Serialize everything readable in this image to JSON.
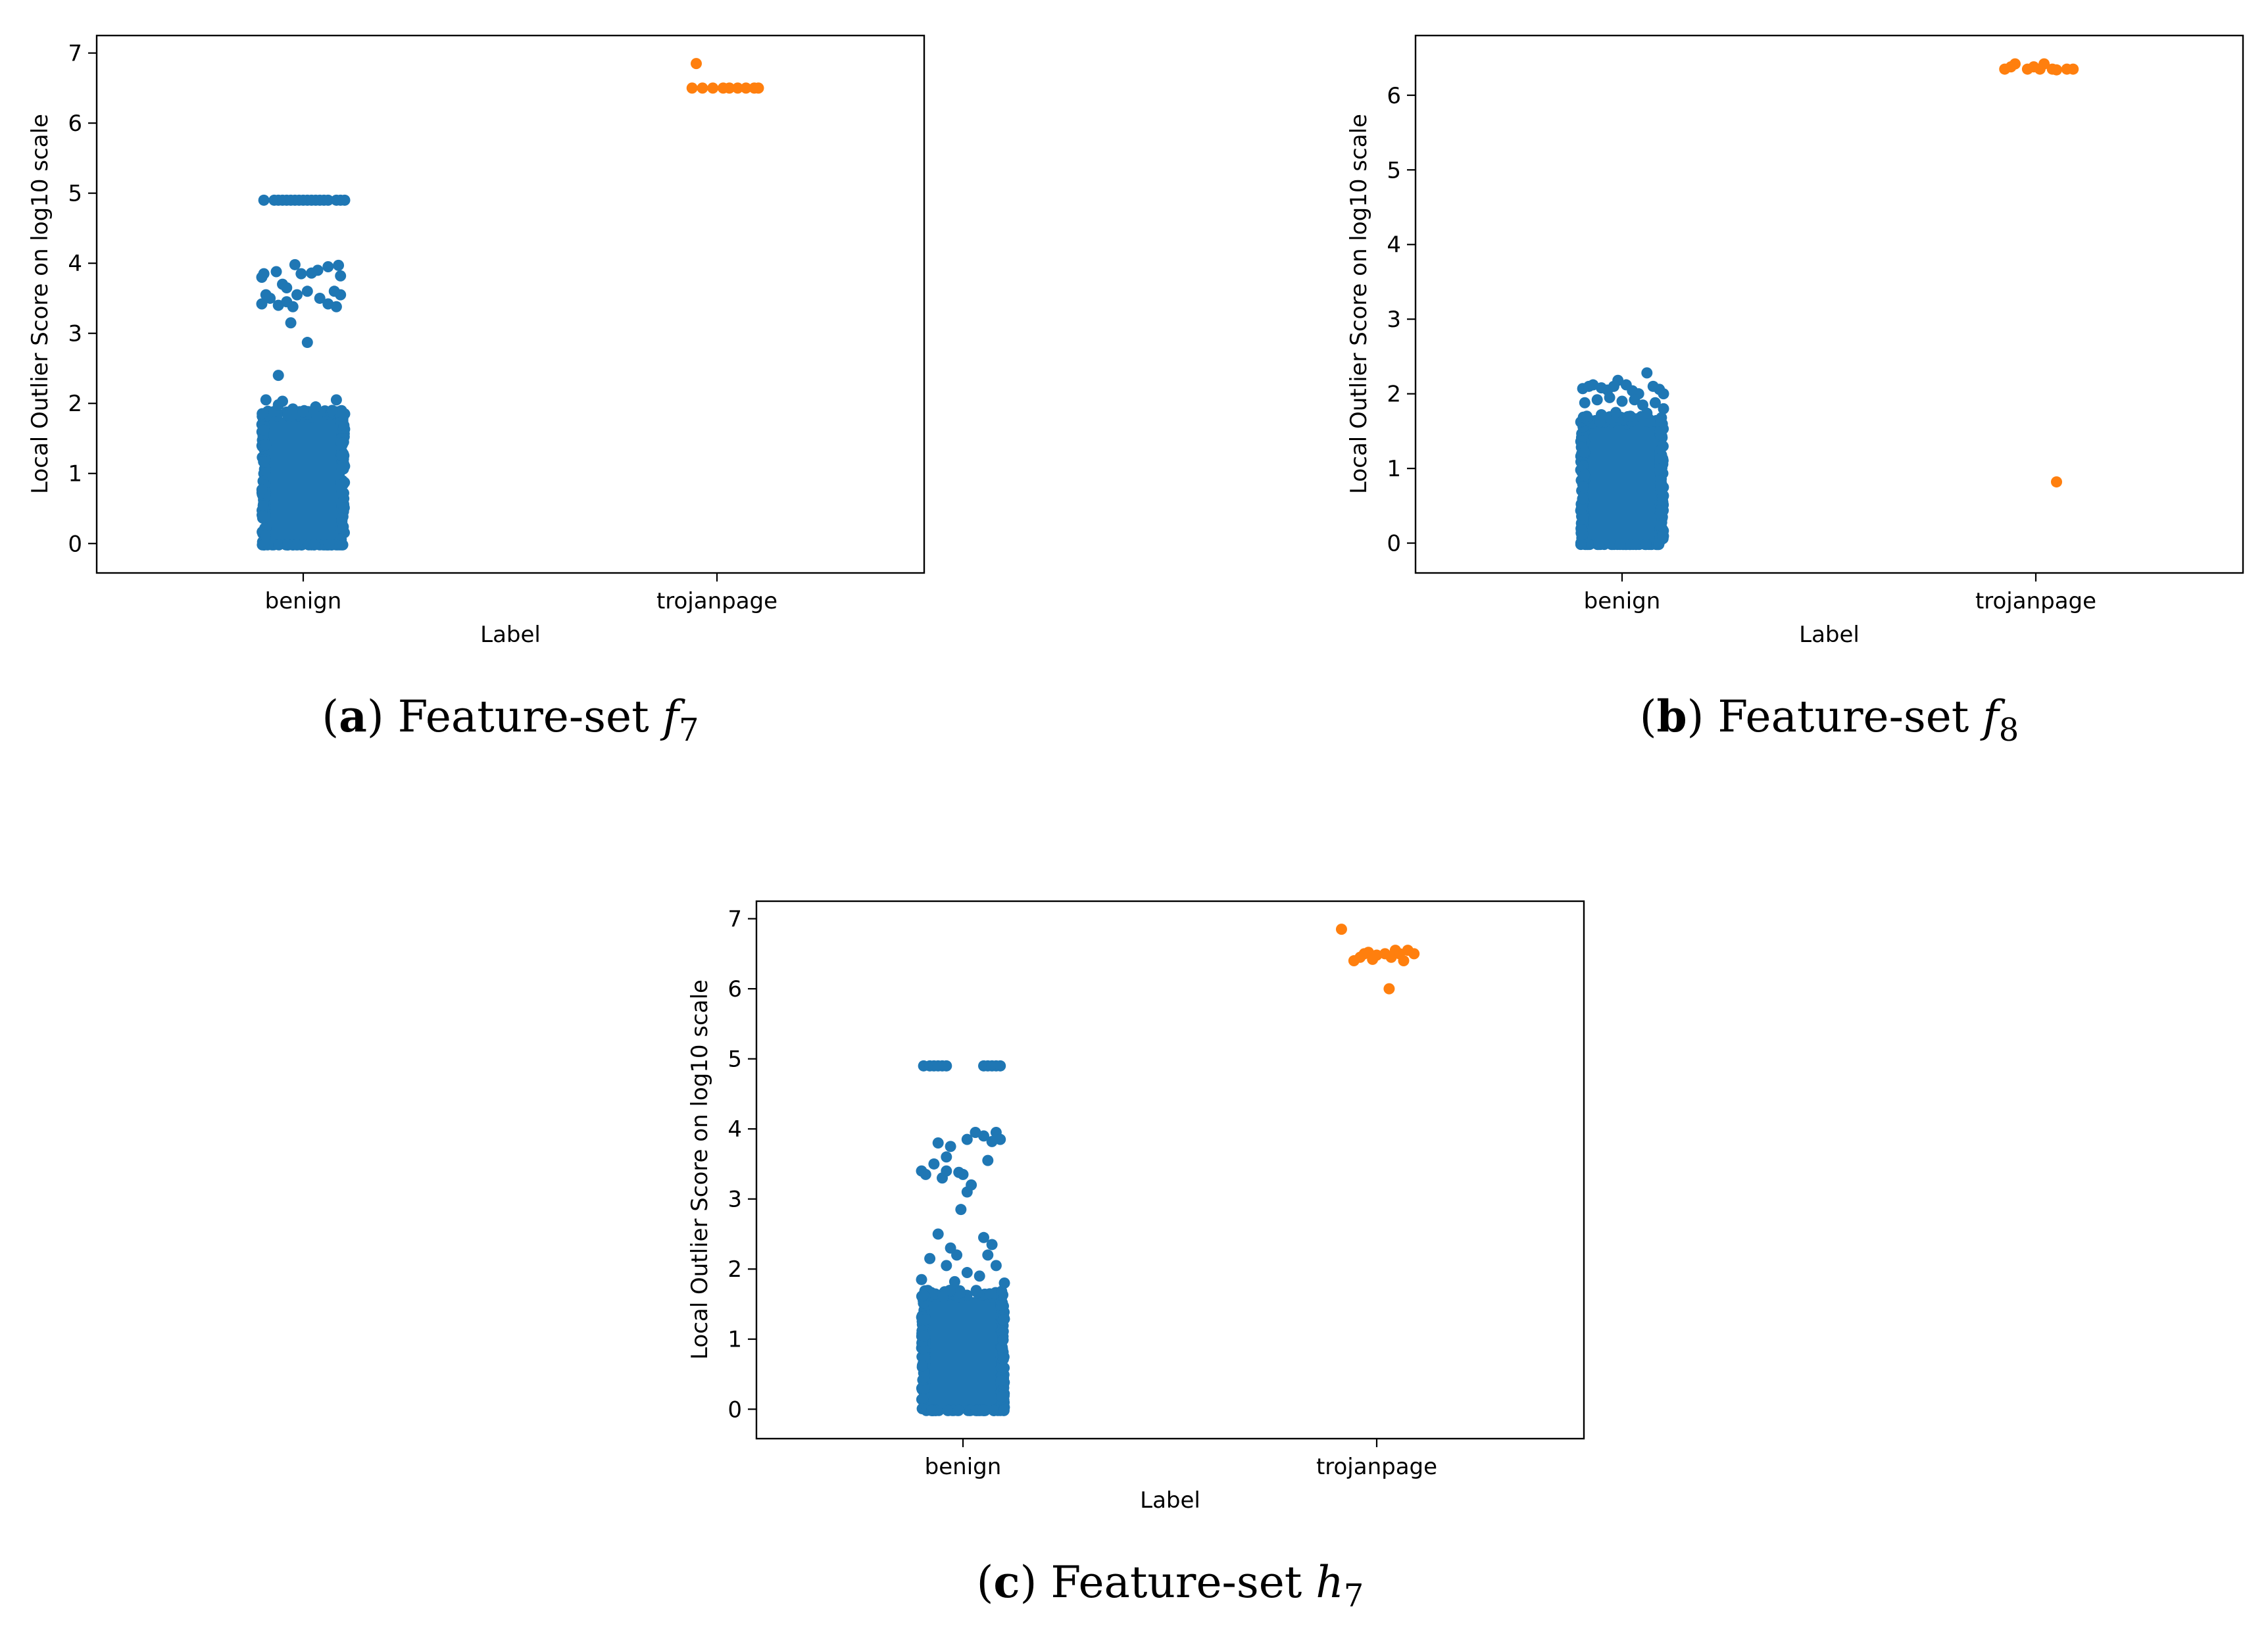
{
  "figure": {
    "colors": {
      "benign": "#1f77b4",
      "trojanpage": "#ff7f0e",
      "axis": "#000000"
    }
  },
  "chart_data": [
    {
      "id": "a",
      "type": "scatter",
      "subtype": "strip",
      "caption": {
        "letter": "a",
        "text": "Feature-set",
        "symbol": "f",
        "subscript": "7"
      },
      "xlabel": "Label",
      "ylabel": "Local Outlier Score on log10 scale",
      "categories": [
        "benign",
        "trojanpage"
      ],
      "ylim": [
        -0.42,
        7.25
      ],
      "yticks": [
        "0",
        "1",
        "2",
        "3",
        "4",
        "5",
        "6",
        "7"
      ],
      "series": [
        {
          "name": "benign",
          "dense_band": {
            "min": 0.0,
            "max": 1.8,
            "width": 0.2
          },
          "points": [
            [
              -0.19,
              4.9
            ],
            [
              -0.14,
              4.9
            ],
            [
              -0.12,
              4.9
            ],
            [
              -0.1,
              4.9
            ],
            [
              -0.08,
              4.9
            ],
            [
              -0.06,
              4.9
            ],
            [
              -0.04,
              4.9
            ],
            [
              -0.02,
              4.9
            ],
            [
              0.0,
              4.9
            ],
            [
              0.02,
              4.9
            ],
            [
              0.04,
              4.9
            ],
            [
              0.06,
              4.9
            ],
            [
              0.08,
              4.9
            ],
            [
              0.1,
              4.9
            ],
            [
              0.12,
              4.9
            ],
            [
              0.16,
              4.9
            ],
            [
              0.18,
              4.9
            ],
            [
              0.2,
              4.9
            ],
            [
              -0.2,
              3.8
            ],
            [
              -0.19,
              3.85
            ],
            [
              -0.13,
              3.88
            ],
            [
              -0.1,
              3.7
            ],
            [
              -0.08,
              3.65
            ],
            [
              -0.04,
              3.98
            ],
            [
              -0.01,
              3.85
            ],
            [
              0.04,
              3.86
            ],
            [
              0.07,
              3.9
            ],
            [
              0.12,
              3.95
            ],
            [
              0.17,
              3.97
            ],
            [
              0.18,
              3.82
            ],
            [
              -0.2,
              3.42
            ],
            [
              -0.18,
              3.55
            ],
            [
              -0.16,
              3.5
            ],
            [
              -0.12,
              3.4
            ],
            [
              -0.08,
              3.45
            ],
            [
              -0.05,
              3.38
            ],
            [
              -0.03,
              3.55
            ],
            [
              0.02,
              3.6
            ],
            [
              0.08,
              3.5
            ],
            [
              0.12,
              3.42
            ],
            [
              0.16,
              3.38
            ],
            [
              0.18,
              3.55
            ],
            [
              0.15,
              3.6
            ],
            [
              -0.06,
              3.15
            ],
            [
              0.02,
              2.87
            ],
            [
              -0.12,
              2.4
            ],
            [
              -0.18,
              2.05
            ],
            [
              -0.12,
              1.98
            ],
            [
              -0.1,
              2.03
            ],
            [
              -0.05,
              1.92
            ],
            [
              0.0,
              1.88
            ],
            [
              0.06,
              1.95
            ],
            [
              0.14,
              1.9
            ],
            [
              0.16,
              2.05
            ],
            [
              0.2,
              1.85
            ]
          ]
        },
        {
          "name": "trojanpage",
          "points": [
            [
              -0.12,
              6.5
            ],
            [
              -0.07,
              6.5
            ],
            [
              -0.02,
              6.5
            ],
            [
              0.03,
              6.5
            ],
            [
              0.06,
              6.5
            ],
            [
              0.1,
              6.5
            ],
            [
              0.14,
              6.5
            ],
            [
              0.18,
              6.5
            ],
            [
              0.2,
              6.5
            ],
            [
              -0.1,
              6.85
            ]
          ]
        }
      ]
    },
    {
      "id": "b",
      "type": "scatter",
      "subtype": "strip",
      "caption": {
        "letter": "b",
        "text": "Feature-set",
        "symbol": "f",
        "subscript": "8"
      },
      "xlabel": "Label",
      "ylabel": "Local Outlier Score on log10 scale",
      "categories": [
        "benign",
        "trojanpage"
      ],
      "ylim": [
        -0.4,
        6.8
      ],
      "yticks": [
        "0",
        "1",
        "2",
        "3",
        "4",
        "5",
        "6"
      ],
      "series": [
        {
          "name": "benign",
          "dense_band": {
            "min": 0.0,
            "max": 1.6,
            "width": 0.2
          },
          "points": [
            [
              -0.19,
              2.07
            ],
            [
              -0.16,
              2.1
            ],
            [
              -0.14,
              2.12
            ],
            [
              -0.1,
              2.08
            ],
            [
              -0.07,
              2.05
            ],
            [
              -0.04,
              2.1
            ],
            [
              -0.02,
              2.18
            ],
            [
              0.02,
              2.12
            ],
            [
              0.05,
              2.04
            ],
            [
              0.08,
              2.0
            ],
            [
              0.12,
              2.28
            ],
            [
              0.15,
              2.1
            ],
            [
              0.18,
              2.06
            ],
            [
              0.2,
              2.0
            ],
            [
              -0.18,
              1.88
            ],
            [
              -0.12,
              1.92
            ],
            [
              -0.06,
              1.95
            ],
            [
              0.0,
              1.9
            ],
            [
              0.06,
              1.92
            ],
            [
              0.1,
              1.85
            ],
            [
              0.16,
              1.88
            ],
            [
              0.2,
              1.8
            ],
            [
              -0.17,
              1.7
            ],
            [
              -0.1,
              1.72
            ],
            [
              -0.03,
              1.75
            ],
            [
              0.04,
              1.7
            ],
            [
              0.12,
              1.74
            ],
            [
              0.19,
              1.68
            ]
          ]
        },
        {
          "name": "trojanpage",
          "points": [
            [
              -0.15,
              6.35
            ],
            [
              -0.12,
              6.38
            ],
            [
              -0.1,
              6.42
            ],
            [
              -0.04,
              6.35
            ],
            [
              -0.01,
              6.38
            ],
            [
              0.02,
              6.35
            ],
            [
              0.04,
              6.42
            ],
            [
              0.08,
              6.35
            ],
            [
              0.1,
              6.34
            ],
            [
              0.15,
              6.35
            ],
            [
              0.18,
              6.35
            ],
            [
              0.1,
              0.82
            ]
          ]
        }
      ]
    },
    {
      "id": "c",
      "type": "scatter",
      "subtype": "strip",
      "caption": {
        "letter": "c",
        "text": "Feature-set",
        "symbol": "h",
        "subscript": "7"
      },
      "xlabel": "Label",
      "ylabel": "Local Outlier Score on log10 scale",
      "categories": [
        "benign",
        "trojanpage"
      ],
      "ylim": [
        -0.42,
        7.25
      ],
      "yticks": [
        "0",
        "1",
        "2",
        "3",
        "4",
        "5",
        "6",
        "7"
      ],
      "series": [
        {
          "name": "benign",
          "dense_band": {
            "min": 0.0,
            "max": 1.6,
            "width": 0.2
          },
          "points": [
            [
              -0.19,
              4.9
            ],
            [
              -0.16,
              4.9
            ],
            [
              -0.14,
              4.9
            ],
            [
              -0.12,
              4.9
            ],
            [
              -0.1,
              4.9
            ],
            [
              -0.08,
              4.9
            ],
            [
              0.1,
              4.9
            ],
            [
              0.12,
              4.9
            ],
            [
              0.14,
              4.9
            ],
            [
              0.16,
              4.9
            ],
            [
              0.18,
              4.9
            ],
            [
              -0.12,
              3.8
            ],
            [
              -0.08,
              3.6
            ],
            [
              -0.06,
              3.75
            ],
            [
              0.02,
              3.85
            ],
            [
              0.06,
              3.95
            ],
            [
              0.1,
              3.9
            ],
            [
              0.14,
              3.82
            ],
            [
              0.16,
              3.95
            ],
            [
              0.18,
              3.85
            ],
            [
              0.12,
              3.55
            ],
            [
              -0.2,
              3.4
            ],
            [
              -0.18,
              3.35
            ],
            [
              -0.14,
              3.5
            ],
            [
              -0.1,
              3.3
            ],
            [
              -0.08,
              3.4
            ],
            [
              -0.02,
              3.38
            ],
            [
              0.0,
              3.35
            ],
            [
              0.04,
              3.2
            ],
            [
              0.02,
              3.1
            ],
            [
              -0.01,
              2.85
            ],
            [
              -0.12,
              2.5
            ],
            [
              -0.06,
              2.3
            ],
            [
              -0.03,
              2.2
            ],
            [
              0.1,
              2.45
            ],
            [
              0.12,
              2.2
            ],
            [
              0.14,
              2.35
            ],
            [
              -0.16,
              2.15
            ],
            [
              -0.08,
              2.05
            ],
            [
              0.02,
              1.95
            ],
            [
              0.08,
              1.9
            ],
            [
              0.16,
              2.05
            ],
            [
              0.2,
              1.8
            ],
            [
              -0.2,
              1.85
            ],
            [
              -0.04,
              1.82
            ]
          ]
        },
        {
          "name": "trojanpage",
          "points": [
            [
              -0.17,
              6.85
            ],
            [
              -0.11,
              6.4
            ],
            [
              -0.08,
              6.45
            ],
            [
              -0.06,
              6.5
            ],
            [
              -0.04,
              6.52
            ],
            [
              -0.02,
              6.42
            ],
            [
              0.0,
              6.48
            ],
            [
              0.04,
              6.5
            ],
            [
              0.07,
              6.45
            ],
            [
              0.09,
              6.55
            ],
            [
              0.11,
              6.5
            ],
            [
              0.13,
              6.4
            ],
            [
              0.15,
              6.55
            ],
            [
              0.18,
              6.5
            ],
            [
              0.06,
              6.0
            ]
          ]
        }
      ]
    }
  ]
}
